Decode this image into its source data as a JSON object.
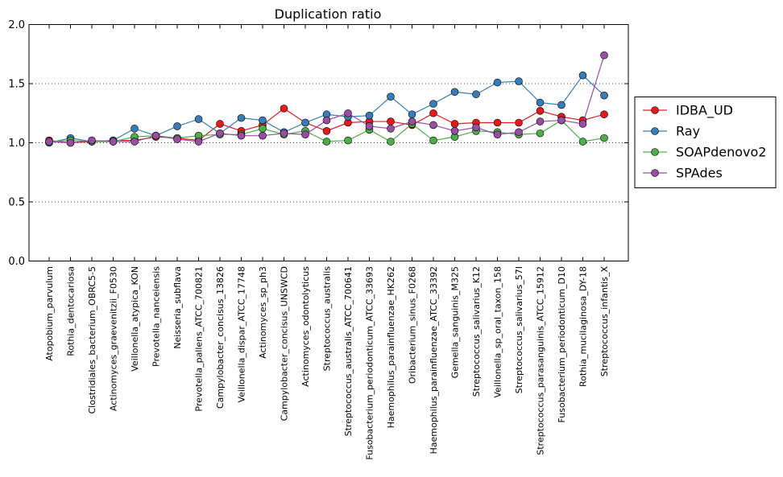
{
  "chart_data": {
    "type": "line",
    "title": "Duplication ratio",
    "xlabel": "",
    "ylabel": "",
    "ylim": [
      0.0,
      2.0
    ],
    "yticks": [
      "0.0",
      "0.5",
      "1.0",
      "1.5",
      "2.0"
    ],
    "grid": "y-dotted",
    "legend_position": "right-outside",
    "categories": [
      "Atopobium_parvulum",
      "Rothia_dentocariosa",
      "Clostridiales_bacterium_OBRC5-5",
      "Actinomyces_graevenitzii_F0530",
      "Veillonella_atypica_KON",
      "Prevotella_nanceiensis",
      "Neisseria_subflava",
      "Prevotella_pallens_ATCC_700821",
      "Campylobacter_concisus_13826",
      "Veillonella_dispar_ATCC_17748",
      "Actinomyces_sp_ph3",
      "Campylobacter_concisus_UNSWCD",
      "Actinomyces_odontolyticus",
      "Streptococcus_australis",
      "Streptococcus_australis_ATCC_700641",
      "Fusobacterium_periodonticum_ATCC_33693",
      "Haemophilus_parainfluenzae_HK262",
      "Oribacterium_sinus_F0268",
      "Haemophilus_parainfluenzae_ATCC_33392",
      "Gemella_sanguinis_M325",
      "Streptococcus_salivarius_K12",
      "Veillonella_sp_oral_taxon_158",
      "Streptococcus_salivarius_57I",
      "Streptococcus_parasanguinis_ATCC_15912",
      "Fusobacterium_periodonticum_D10",
      "Rothia_mucilaginosa_DY-18",
      "Streptococcus_infantis_X"
    ],
    "series": [
      {
        "name": "IDBA_UD",
        "color": "#e41a1c",
        "values": [
          1.02,
          1.0,
          1.01,
          1.02,
          1.02,
          1.05,
          1.04,
          1.02,
          1.16,
          1.1,
          1.15,
          1.29,
          1.17,
          1.1,
          1.17,
          1.18,
          1.18,
          1.15,
          1.25,
          1.16,
          1.17,
          1.17,
          1.17,
          1.27,
          1.22,
          1.19,
          1.24
        ]
      },
      {
        "name": "Ray",
        "color": "#377eb8",
        "values": [
          1.0,
          1.04,
          1.01,
          1.02,
          1.12,
          1.06,
          1.14,
          1.2,
          1.08,
          1.21,
          1.19,
          1.09,
          1.17,
          1.24,
          1.22,
          1.23,
          1.39,
          1.24,
          1.33,
          1.43,
          1.41,
          1.51,
          1.52,
          1.34,
          1.32,
          1.57,
          1.4
        ]
      },
      {
        "name": "SOAPdenovo2",
        "color": "#4daf4a",
        "values": [
          1.01,
          1.02,
          1.01,
          1.01,
          1.05,
          1.06,
          1.04,
          1.06,
          1.07,
          1.07,
          1.12,
          1.07,
          1.1,
          1.01,
          1.02,
          1.11,
          1.01,
          1.16,
          1.02,
          1.05,
          1.1,
          1.09,
          1.07,
          1.08,
          1.19,
          1.01,
          1.04
        ]
      },
      {
        "name": "SPAdes",
        "color": "#984ea3",
        "values": [
          1.01,
          1.0,
          1.02,
          1.01,
          1.01,
          1.06,
          1.03,
          1.01,
          1.08,
          1.06,
          1.06,
          1.08,
          1.07,
          1.19,
          1.25,
          1.14,
          1.12,
          1.18,
          1.15,
          1.1,
          1.13,
          1.07,
          1.09,
          1.18,
          1.19,
          1.16,
          1.74
        ]
      }
    ]
  }
}
